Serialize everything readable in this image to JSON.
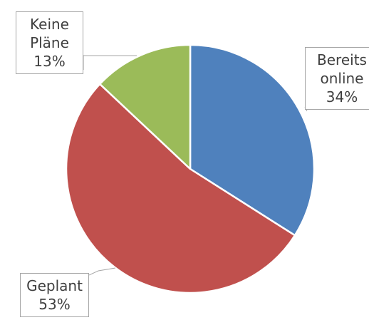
{
  "chart_data": {
    "type": "pie",
    "categories": [
      "Bereits online",
      "Geplant",
      "Keine Pläne"
    ],
    "values": [
      34,
      53,
      13
    ],
    "value_labels": [
      "34%",
      "53%",
      "13%"
    ],
    "colors": [
      "#4f81bd",
      "#c0504d",
      "#9bbb59"
    ]
  }
}
